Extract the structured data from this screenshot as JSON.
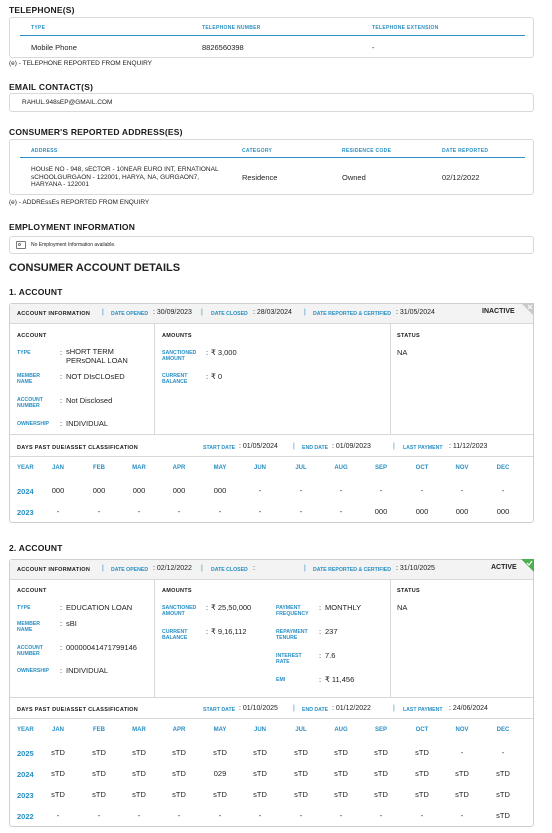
{
  "telephone": {
    "title": "TELEPHONE(S)",
    "headers": [
      "TYPE",
      "TELEPHONE NUMBER",
      "TELEPHONE EXTENSION"
    ],
    "rows": [
      [
        "Mobile Phone",
        "8826560398",
        "-"
      ]
    ],
    "note": "(e) - TELEPHONE REPORTED FROM ENQUIRY"
  },
  "email": {
    "title": "EMAIL CONTACT(S)",
    "value": "RAHUL.948sEP@GMAIL.COM"
  },
  "address": {
    "title": "CONSUMER'S REPORTED ADDRESS(ES)",
    "headers": [
      "ADDRESS",
      "CATEGORY",
      "RESIDENCE CODE",
      "DATE REPORTED"
    ],
    "rows": [
      [
        "HOUsE NO - 948, sECTOR - 10NEAR EURO INT, ERNATIONAL sCHOOLGURGAON - 122001, HARYA, NA, GURGAON7, HARYANA - 122001",
        "Residence",
        "Owned",
        "02/12/2022"
      ]
    ],
    "note": "(e) - ADDREssEs REPORTED FROM ENQUIRY"
  },
  "employment": {
    "title": "EMPLOYMENT INFORMATION",
    "value": "No Employment Information available.",
    "icon": "id-card-icon"
  },
  "account_details_title": "CONSUMER ACCOUNT DETAILS",
  "accounts": [
    {
      "title": "1. ACCOUNT",
      "info_label": "ACCOUNT INFORMATION",
      "date_opened_label": "DATE OPENED",
      "date_opened": ": 30/09/2023",
      "date_closed_label": "DATE CLOSED",
      "date_closed": ": 28/03/2024",
      "date_reported_label": "DATE REPORTED & CERTIFIED",
      "date_reported": ": 31/05/2024",
      "status_badge": "INACTIVE",
      "status_badge_color": "#c9c9c9",
      "account_title": "ACCOUNT",
      "account_fields": [
        {
          "label": "TYPE",
          "value": "sHORT TERM PERsONAL LOAN"
        },
        {
          "label": "MEMBER NAME",
          "value": "NOT DIsCLOsED"
        },
        {
          "label": "ACCOUNT NUMBER",
          "value": "Not Disclosed"
        },
        {
          "label": "OWNERSHIP",
          "value": "INDIVIDUAL"
        }
      ],
      "amounts_title": "AMOUNTS",
      "amount_fields": [
        {
          "label": "SANCTIONED AMOUNT",
          "value": "₹ 3,000"
        },
        {
          "label": "CURRENT BALANCE",
          "value": "₹ 0"
        }
      ],
      "amount_fields_2": [],
      "status_title": "STATUS",
      "status_value": "NA",
      "dpd_label": "DAYS PAST DUE/ASSET CLASSIFICATION",
      "start_label": "START DATE",
      "start_date": ": 01/05/2024",
      "end_label": "END DATE",
      "end_date": ": 01/09/2023",
      "last_label": "LAST PAYMENT",
      "last_payment": ": 11/12/2023",
      "months": [
        "YEAR",
        "JAN",
        "FEB",
        "MAR",
        "APR",
        "MAY",
        "JUN",
        "JUL",
        "AUG",
        "SEP",
        "OCT",
        "NOV",
        "DEC"
      ],
      "rows": [
        [
          "2024",
          "000",
          "000",
          "000",
          "000",
          "000",
          "-",
          "-",
          "-",
          "-",
          "-",
          "-",
          "-"
        ],
        [
          "2023",
          "-",
          "-",
          "-",
          "-",
          "-",
          "-",
          "-",
          "-",
          "000",
          "000",
          "000",
          "000"
        ]
      ]
    },
    {
      "title": "2. ACCOUNT",
      "info_label": "ACCOUNT INFORMATION",
      "date_opened_label": "DATE OPENED",
      "date_opened": ": 02/12/2022",
      "date_closed_label": "DATE CLOSED",
      "date_closed": ":",
      "date_reported_label": "DATE REPORTED & CERTIFIED",
      "date_reported": ": 31/10/2025",
      "status_badge": "ACTIVE",
      "status_badge_color": "#4caf50",
      "account_title": "ACCOUNT",
      "account_fields": [
        {
          "label": "TYPE",
          "value": "EDUCATION LOAN"
        },
        {
          "label": "MEMBER NAME",
          "value": "sBI"
        },
        {
          "label": "ACCOUNT NUMBER",
          "value": "00000041471799146"
        },
        {
          "label": "OWNERSHIP",
          "value": "INDIVIDUAL"
        }
      ],
      "amounts_title": "AMOUNTS",
      "amount_fields": [
        {
          "label": "SANCTIONED AMOUNT",
          "value": "₹ 25,50,000"
        },
        {
          "label": "CURRENT BALANCE",
          "value": "₹ 9,16,112"
        }
      ],
      "amount_fields_2": [
        {
          "label": "PAYMENT FREQUENCY",
          "value": "MONTHLY"
        },
        {
          "label": "REPAYMENT TENURE",
          "value": "237"
        },
        {
          "label": "INTEREST RATE",
          "value": "7.6"
        },
        {
          "label": "EMI",
          "value": "₹ 11,456"
        }
      ],
      "status_title": "STATUS",
      "status_value": "NA",
      "dpd_label": "DAYS PAST DUE/ASSET CLASSIFICATION",
      "start_label": "START DATE",
      "start_date": ": 01/10/2025",
      "end_label": "END DATE",
      "end_date": ": 01/12/2022",
      "last_label": "LAST PAYMENT",
      "last_payment": ": 24/06/2024",
      "months": [
        "YEAR",
        "JAN",
        "FEB",
        "MAR",
        "APR",
        "MAY",
        "JUN",
        "JUL",
        "AUG",
        "SEP",
        "OCT",
        "NOV",
        "DEC"
      ],
      "rows": [
        [
          "2025",
          "sTD",
          "sTD",
          "sTD",
          "sTD",
          "sTD",
          "sTD",
          "sTD",
          "sTD",
          "sTD",
          "sTD",
          "-",
          "-"
        ],
        [
          "2024",
          "sTD",
          "sTD",
          "sTD",
          "sTD",
          "029",
          "sTD",
          "sTD",
          "sTD",
          "sTD",
          "sTD",
          "sTD",
          "sTD"
        ],
        [
          "2023",
          "sTD",
          "sTD",
          "sTD",
          "sTD",
          "sTD",
          "sTD",
          "sTD",
          "sTD",
          "sTD",
          "sTD",
          "sTD",
          "sTD"
        ],
        [
          "2022",
          "-",
          "-",
          "-",
          "-",
          "-",
          "-",
          "-",
          "-",
          "-",
          "-",
          "-",
          "sTD"
        ]
      ]
    }
  ]
}
